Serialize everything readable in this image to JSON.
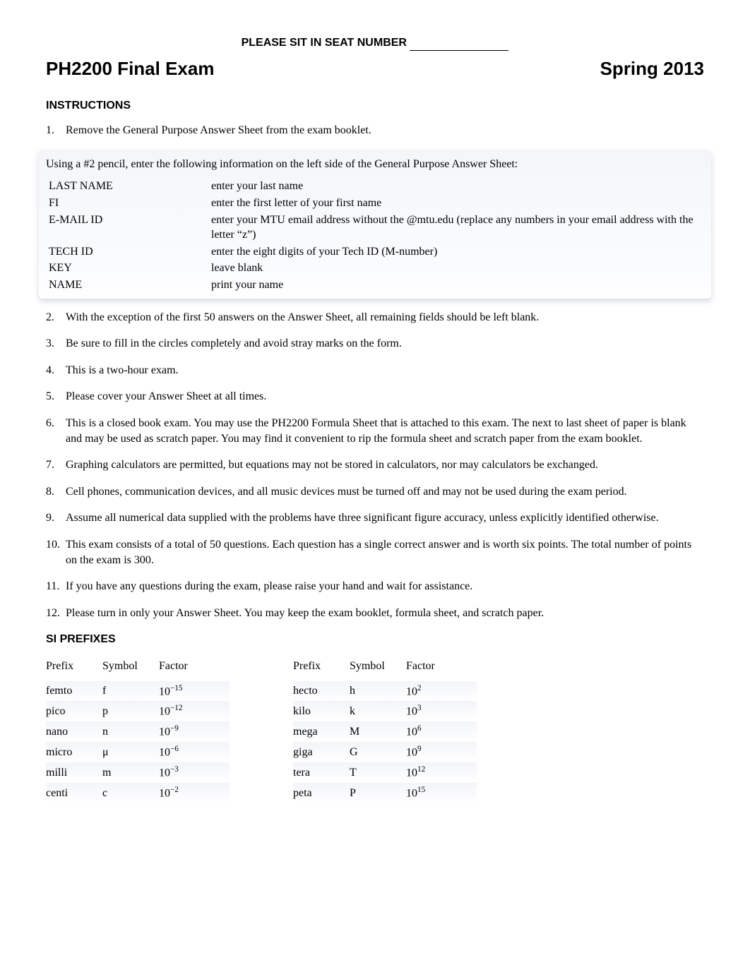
{
  "seat_label": "PLEASE SIT IN SEAT NUMBER",
  "title_left": "PH2200  Final Exam",
  "title_right": "Spring 2013",
  "instructions_heading": "INSTRUCTIONS",
  "instructions": {
    "i1": "Remove the General Purpose Answer Sheet from the exam booklet.",
    "i2": "Using a #2 pencil, enter the following information on the left side of the General Purpose Answer Sheet:",
    "fields": {
      "last_name": {
        "label": "LAST NAME",
        "desc": "enter your last name"
      },
      "fi": {
        "label": "FI",
        "desc": "enter the first letter of your first name"
      },
      "email": {
        "label": "E-MAIL ID",
        "desc": "enter your MTU email address without the @mtu.edu (replace any numbers in your email address with the letter “z”)"
      },
      "techid": {
        "label": "TECH ID",
        "desc": "enter the eight digits of your Tech ID (M-number)"
      },
      "key": {
        "label": "KEY",
        "desc": "leave blank"
      },
      "name": {
        "label": "NAME",
        "desc": "print your name"
      }
    },
    "i3": "With the exception of the first 50 answers on the Answer Sheet, all remaining fields should be left blank.",
    "i4": "Be sure to fill in the circles completely and avoid stray marks on the form.",
    "i5": "This is a two-hour exam.",
    "i6": "Please cover your Answer Sheet at all times.",
    "i7": "This is a closed book exam.  You may use the PH2200 Formula Sheet that is attached to this exam.  The next to last sheet of paper is blank and may be used as scratch paper. You may find it convenient to rip the formula sheet and scratch paper from the exam booklet.",
    "i8": "Graphing calculators are permitted, but equations may not be stored in calculators, nor may calculators be exchanged.",
    "i9": "Cell phones, communication devices, and all music devices must be turned off and may not be used during the exam period.",
    "i10": "Assume all numerical data supplied with the problems have three significant figure accuracy, unless explicitly identified otherwise.",
    "i11": "This exam consists of a total of 50 questions.  Each question has a single correct answer and is worth six points.  The total number of points on the exam is 300.",
    "i12": "If you have any questions during the exam, please raise your hand and wait for assistance.",
    "i13": "Please turn in only your Answer Sheet.  You may keep the exam booklet, formula sheet, and scratch paper."
  },
  "si_heading": "SI PREFIXES",
  "si_headers": {
    "prefix": "Prefix",
    "symbol": "Symbol",
    "factor": "Factor"
  },
  "si_left": [
    {
      "prefix": "femto",
      "symbol": "f",
      "base": "10",
      "exp": "−15"
    },
    {
      "prefix": "pico",
      "symbol": "p",
      "base": "10",
      "exp": "−12"
    },
    {
      "prefix": "nano",
      "symbol": "n",
      "base": "10",
      "exp": "−9"
    },
    {
      "prefix": "micro",
      "symbol": "μ",
      "base": "10",
      "exp": "−6"
    },
    {
      "prefix": "milli",
      "symbol": "m",
      "base": "10",
      "exp": "−3"
    },
    {
      "prefix": "centi",
      "symbol": "c",
      "base": "10",
      "exp": "−2"
    }
  ],
  "si_right": [
    {
      "prefix": "hecto",
      "symbol": "h",
      "base": "10",
      "exp": "2"
    },
    {
      "prefix": "kilo",
      "symbol": "k",
      "base": "10",
      "exp": "3"
    },
    {
      "prefix": "mega",
      "symbol": "M",
      "base": "10",
      "exp": "6"
    },
    {
      "prefix": "giga",
      "symbol": "G",
      "base": "10",
      "exp": "9"
    },
    {
      "prefix": "tera",
      "symbol": "T",
      "base": "10",
      "exp": "12"
    },
    {
      "prefix": "peta",
      "symbol": "P",
      "base": "10",
      "exp": "15"
    }
  ],
  "style": {
    "page_bg": "#ffffff",
    "text_color": "#000000",
    "body_font": "Times New Roman",
    "heading_font": "Arial",
    "title_fontsize_pt": 20,
    "body_fontsize_pt": 12,
    "heading_fontsize_pt": 12,
    "highlight_bg_top": "#f4f6fa",
    "highlight_bg_bottom": "#ffffff",
    "row_tint": "#e6eaf2"
  }
}
